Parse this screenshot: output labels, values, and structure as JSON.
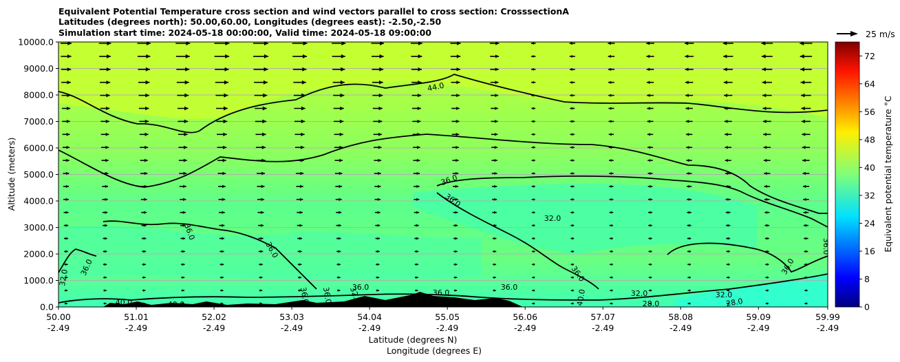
{
  "figure": {
    "title_lines": [
      "Equivalent Potential Temperature cross section and wind vectors parallel to cross section: CrosssectionA",
      "Latitudes (degrees north): 50.00,60.00, Longitudes (degrees east): -2.50,-2.50",
      "Simulation start time: 2024-05-18 00:00:00, Valid time: 2024-05-18 09:00:00"
    ]
  },
  "chart_data": {
    "type": "heatmap",
    "ylabel": "Altitude (meters)",
    "xlabel_lat": "Latitude (degrees N)",
    "xlabel_lon": "Longitude (degrees E)",
    "ylim": [
      0,
      10000
    ],
    "y_ticks": [
      "0.0",
      "1000.0",
      "2000.0",
      "3000.0",
      "4000.0",
      "5000.0",
      "6000.0",
      "7000.0",
      "8000.0",
      "9000.0",
      "10000.0"
    ],
    "x_ticks_lat": [
      "50.00",
      "51.01",
      "52.02",
      "53.03",
      "54.04",
      "55.05",
      "56.06",
      "57.07",
      "58.08",
      "59.09",
      "59.99"
    ],
    "x_ticks_lon": [
      "-2.49",
      "-2.49",
      "-2.49",
      "-2.49",
      "-2.49",
      "-2.49",
      "-2.49",
      "-2.49",
      "-2.49",
      "-2.49",
      "-2.49"
    ],
    "grid": "horizontal",
    "colorbar": {
      "label": "Equivalent potential temperature °C",
      "range": [
        0,
        76
      ],
      "ticks": [
        "0",
        "8",
        "16",
        "24",
        "32",
        "40",
        "48",
        "56",
        "64",
        "72"
      ],
      "colormap": "jet"
    },
    "contour_labels": [
      "44.0",
      "36.0",
      "36.0",
      "32.0",
      "36.0",
      "36.0",
      "36.0",
      "32.0",
      "36.0",
      "32.0",
      "36.0",
      "36.0",
      "40.0",
      "40.0",
      "36.0",
      "36.0",
      "36.0",
      "36.0",
      "36.0",
      "32.0",
      "28.0",
      "28.0",
      "32.0",
      "40.0"
    ],
    "quiver_key": {
      "label": "25 m/s"
    },
    "colors": {
      "background_field": "#7fff6a",
      "upper_field": "#b8ff3e",
      "lower_field": "#41ffb5",
      "contour": "#000000",
      "terrain": "#000000"
    }
  }
}
